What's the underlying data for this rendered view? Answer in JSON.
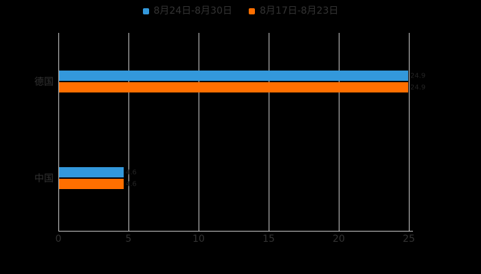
{
  "chart_data": {
    "type": "bar",
    "orientation": "horizontal",
    "title": "",
    "xlabel": "",
    "ylabel": "",
    "categories": [
      "德国",
      "中国"
    ],
    "series": [
      {
        "name": "8月24日-8月30日",
        "color": "#3398db",
        "values": [
          24.9,
          4.6
        ]
      },
      {
        "name": "8月17日-8月23日",
        "color": "#ff6f00",
        "values": [
          24.9,
          4.6
        ]
      }
    ],
    "x_ticks": [
      0,
      5,
      10,
      15,
      20,
      25
    ],
    "xlim": [
      0,
      25
    ],
    "grid": true,
    "legend_position": "top-center",
    "background_color": "#000000",
    "text_color": "#333333",
    "grid_color": "#cccccc",
    "value_label_color": "#242424"
  }
}
